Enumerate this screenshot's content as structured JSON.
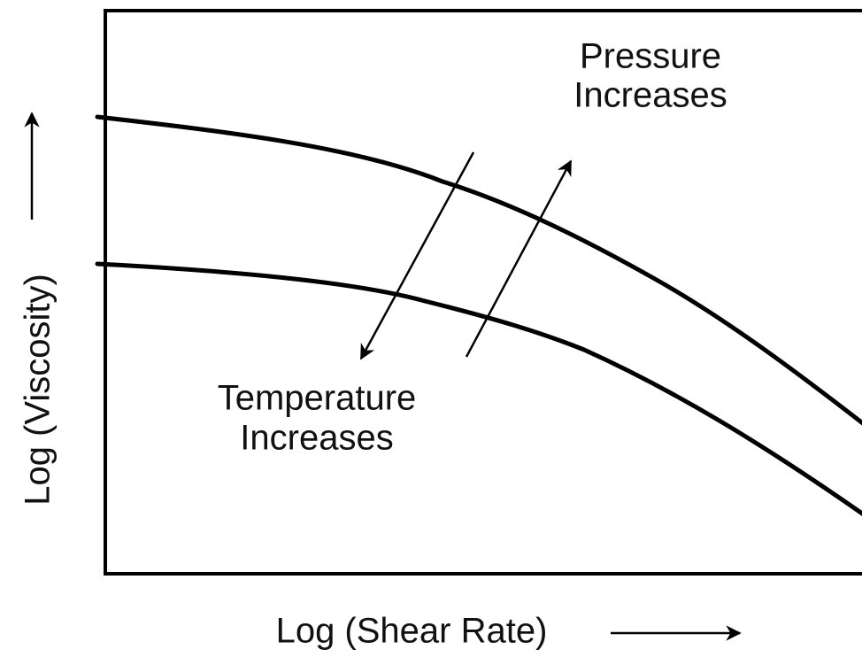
{
  "x_axis_label": "Log (Shear Rate)",
  "y_axis_label": "Log (Viscosity)",
  "annotations": [
    {
      "lines": [
        "Pressure",
        "Increases"
      ]
    },
    {
      "lines": [
        "Temperature",
        "Increases"
      ]
    }
  ]
}
